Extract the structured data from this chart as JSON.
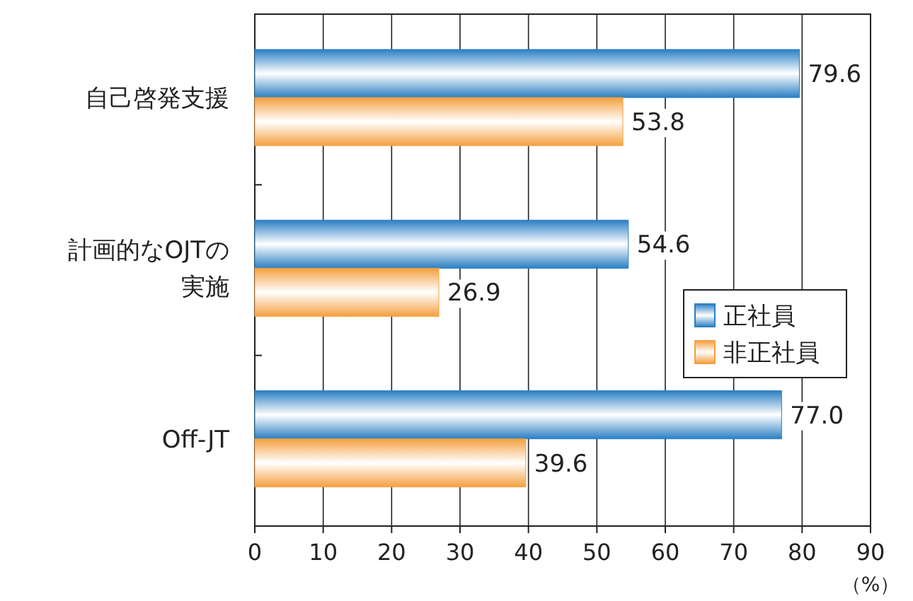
{
  "chart_data": {
    "type": "bar",
    "orientation": "horizontal",
    "categories": [
      "自己啓発支援",
      "計画的なOJTの実施",
      "Off-JT"
    ],
    "series": [
      {
        "name": "正社員",
        "color": "#2a7fc4",
        "values": [
          79.6,
          54.6,
          77.0
        ],
        "value_labels": [
          "79.6",
          "54.6",
          "77.0"
        ]
      },
      {
        "name": "非正社員",
        "color": "#f5a040",
        "values": [
          53.8,
          26.9,
          39.6
        ],
        "value_labels": [
          "53.8",
          "26.9",
          "39.6"
        ]
      }
    ],
    "xlim": [
      0,
      90
    ],
    "xticks": [
      0,
      10,
      20,
      30,
      40,
      50,
      60,
      70,
      80,
      90
    ],
    "xlabel": "（%）",
    "grid": "x",
    "legend": "right"
  }
}
